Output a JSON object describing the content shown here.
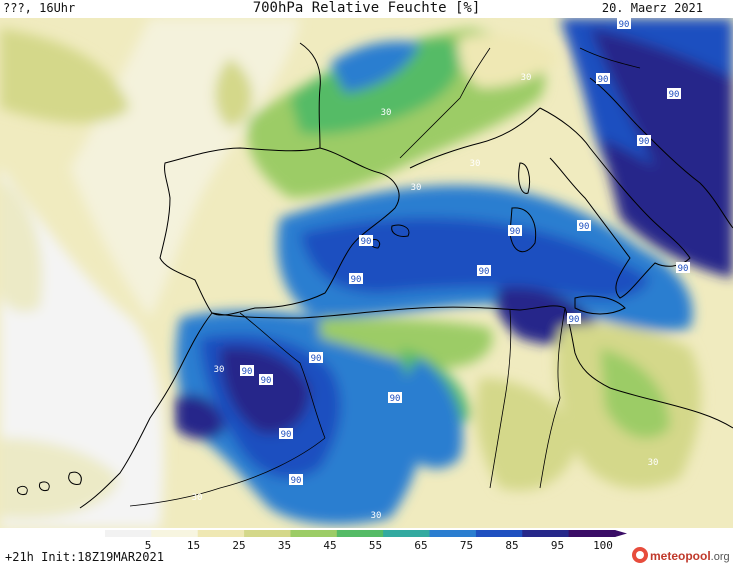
{
  "header": {
    "left": "???, 16Uhr",
    "title": "700hPa Relative Feuchte [%]",
    "date": "20. Maerz 2021"
  },
  "footer": {
    "run": "+21h",
    "init": "Init:18Z19MAR2021",
    "brand_name": "meteopool",
    "brand_tld": ".org"
  },
  "colorbar": {
    "ticks": [
      "5",
      "15",
      "25",
      "35",
      "45",
      "55",
      "65",
      "75",
      "85",
      "95",
      "100"
    ],
    "colors": [
      "#f2f2f2",
      "#f7f5e0",
      "#efe8b4",
      "#d4d88a",
      "#9ccc66",
      "#55bb66",
      "#33aaa0",
      "#2b7ed0",
      "#1f50c0",
      "#27288a",
      "#3a0d66"
    ]
  },
  "contour_labels": {
    "high": "90",
    "low": "30"
  }
}
